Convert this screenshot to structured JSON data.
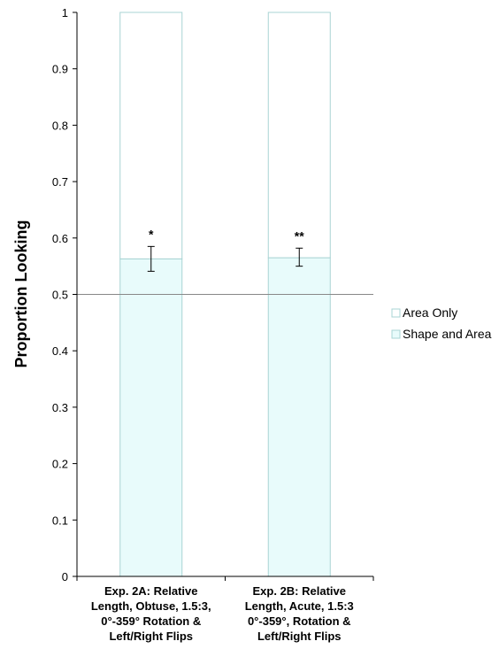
{
  "chart_data": {
    "type": "bar",
    "stacked": true,
    "categories": [
      [
        "Exp. 2A: Relative",
        "Length, Obtuse, 1.5:3,",
        "0°-359° Rotation &",
        "Left/Right Flips"
      ],
      [
        "Exp. 2B: Relative",
        "Length, Acute, 1.5:3",
        "0°-359°, Rotation &",
        "Left/Right Flips"
      ]
    ],
    "series": [
      {
        "name": "Shape and Area",
        "values": [
          0.563,
          0.565
        ],
        "color": "#e8fbfb",
        "stroke": "#a9d4d4"
      },
      {
        "name": "Area Only",
        "values": [
          0.437,
          0.435
        ],
        "color": "#ffffff",
        "stroke": "#a9d4d4"
      }
    ],
    "error_bars": [
      {
        "low": 0.541,
        "high": 0.585
      },
      {
        "low": 0.55,
        "high": 0.582
      }
    ],
    "significance": [
      "*",
      "**"
    ],
    "reference_line": 0.5,
    "ylabel": "Proportion Looking",
    "xlabel": "",
    "title": "",
    "ylim": [
      0,
      1
    ],
    "yticks": [
      0,
      0.1,
      0.2,
      0.3,
      0.4,
      0.5,
      0.6,
      0.7,
      0.8,
      0.9,
      1
    ],
    "ytick_labels": [
      "0",
      "0.1",
      "0.2",
      "0.3",
      "0.4",
      "0.5",
      "0.6",
      "0.7",
      "0.8",
      "0.9",
      "1"
    ],
    "legend": {
      "position": "right",
      "entries": [
        "Area Only",
        "Shape and Area"
      ]
    },
    "grid": false
  }
}
